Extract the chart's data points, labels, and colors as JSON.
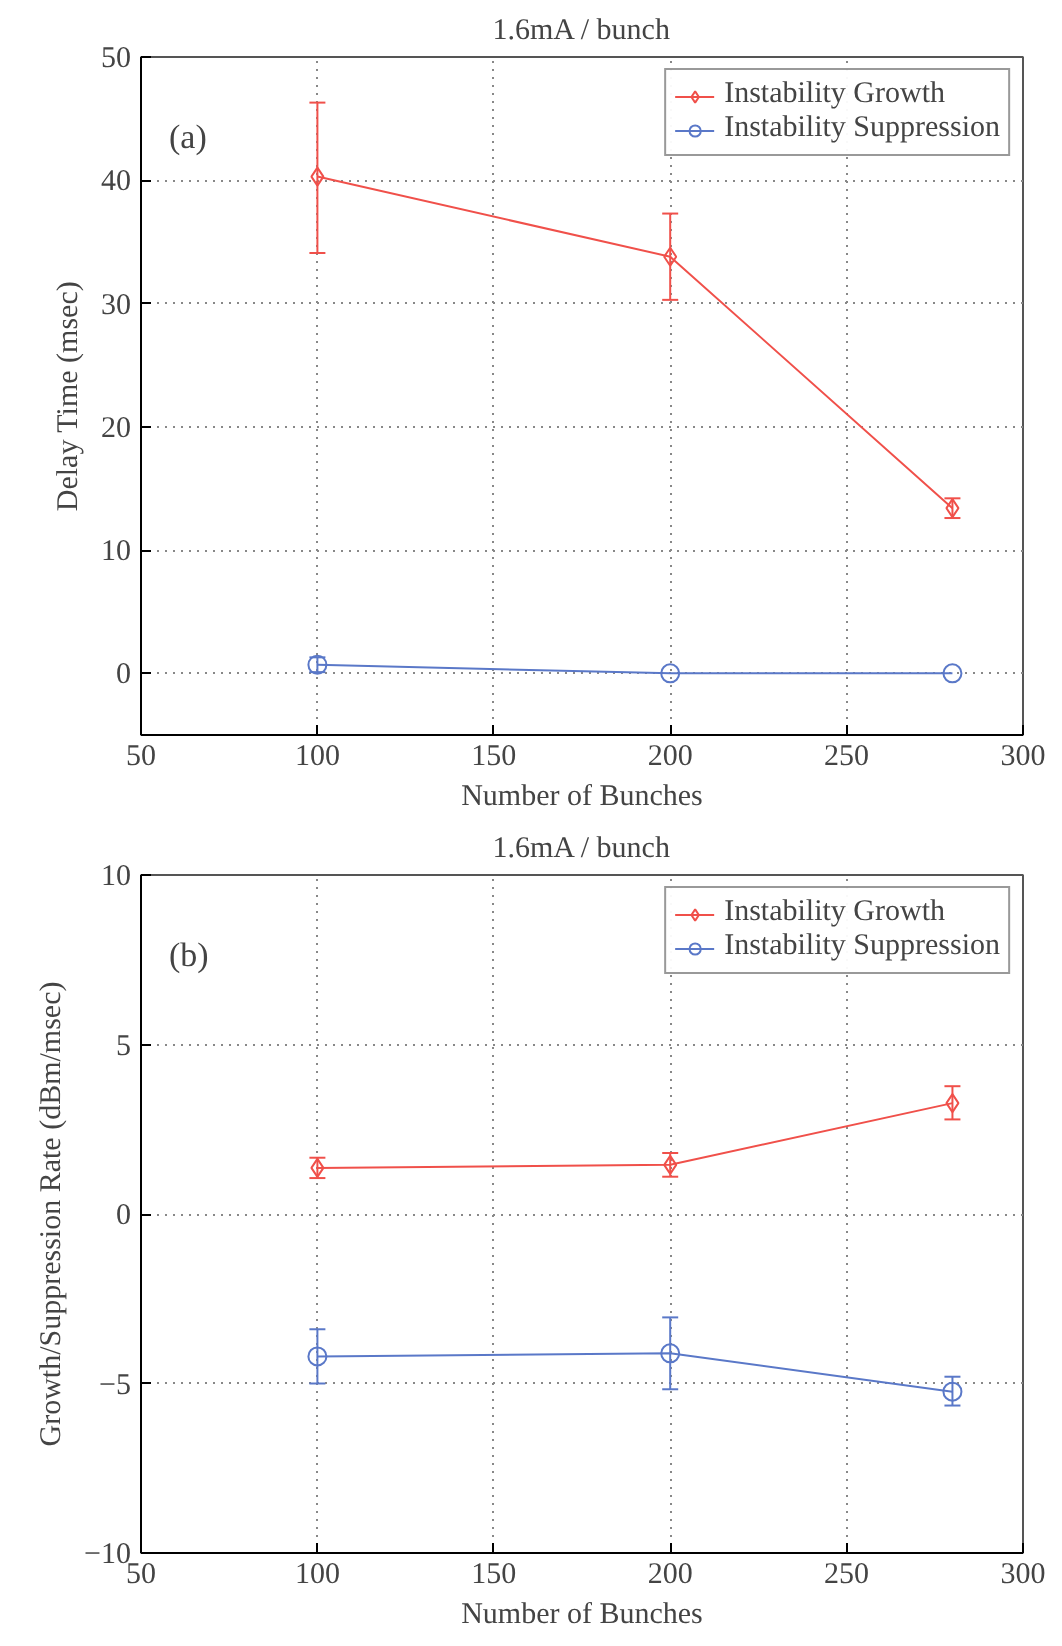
{
  "chart_data": [
    {
      "type": "line",
      "title": "1.6mA / bunch",
      "xlabel": "Number of Bunches",
      "ylabel": "Delay Time (msec)",
      "annotations": [
        "(a)"
      ],
      "x": [
        100,
        200,
        280
      ],
      "xlim": [
        50,
        300
      ],
      "xticks": [
        50,
        100,
        150,
        200,
        250,
        300
      ],
      "ylim": [
        -5,
        50
      ],
      "yticks": [
        0,
        10,
        20,
        30,
        40,
        50
      ],
      "grid": true,
      "legend": "top right",
      "series": [
        {
          "name": "Instability Growth",
          "color": "#f0504a",
          "marker": "diamond",
          "values": [
            40.3,
            33.8,
            13.4
          ],
          "errors": [
            [
              34.1,
              46.3
            ],
            [
              30.3,
              37.3
            ],
            [
              12.6,
              14.2
            ]
          ]
        },
        {
          "name": "Instability Suppression",
          "color": "#5a78c8",
          "marker": "circle",
          "values": [
            0.7,
            0.0,
            0.0
          ],
          "errors": [
            0.6,
            null,
            null
          ]
        }
      ]
    },
    {
      "type": "line",
      "title": "1.6mA / bunch",
      "xlabel": "Number of Bunches",
      "ylabel": "Growth/Suppression Rate (dBm/msec)",
      "annotations": [
        "(b)"
      ],
      "x": [
        100,
        200,
        280
      ],
      "xlim": [
        50,
        300
      ],
      "xticks": [
        50,
        100,
        150,
        200,
        250,
        300
      ],
      "ylim": [
        -10,
        10
      ],
      "yticks": [
        -10,
        -5,
        0,
        5,
        10
      ],
      "grid": true,
      "legend": "top right",
      "series": [
        {
          "name": "Instability Growth",
          "color": "#f0504a",
          "marker": "diamond",
          "values": [
            1.36,
            1.45,
            3.27
          ],
          "errors": [
            0.3,
            0.35,
            [
              2.79,
              3.77
            ]
          ]
        },
        {
          "name": "Instability Suppression",
          "color": "#5a78c8",
          "marker": "circle",
          "values": [
            -4.2,
            -4.11,
            -5.24
          ],
          "errors": [
            [
              -5.0,
              -3.4
            ],
            [
              -5.17,
              -3.05
            ],
            [
              -5.65,
              -4.8
            ]
          ]
        }
      ]
    }
  ]
}
